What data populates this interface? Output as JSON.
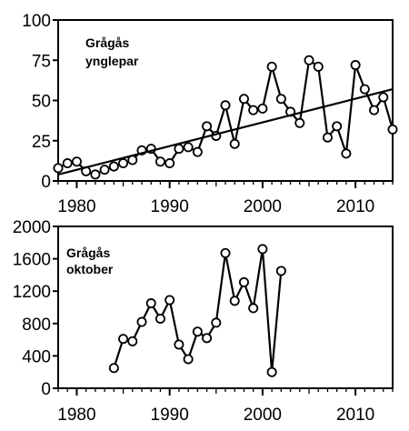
{
  "chart_data": [
    {
      "type": "line",
      "title": "",
      "annotation": [
        "Grågås",
        "ynglepar"
      ],
      "xlabel": "",
      "ylabel": "",
      "xlim": [
        1978,
        2014
      ],
      "ylim": [
        0,
        100
      ],
      "xticks": [
        1980,
        1990,
        2000,
        2010
      ],
      "yticks": [
        0,
        25,
        50,
        75,
        100
      ],
      "grid": false,
      "series": [
        {
          "x": [
            1978,
            1979,
            1980,
            1981,
            1982,
            1983,
            1984,
            1985,
            1986,
            1987,
            1988,
            1989,
            1990,
            1991,
            1992,
            1993,
            1994,
            1995,
            1996,
            1997,
            1998,
            1999,
            2000,
            2001,
            2002,
            2003,
            2004,
            2005,
            2006,
            2007,
            2008,
            2009,
            2010,
            2011,
            2012,
            2013,
            2014
          ],
          "values": [
            8,
            11,
            12,
            6,
            4,
            7,
            9,
            11,
            13,
            19,
            20,
            12,
            11,
            20,
            21,
            18,
            34,
            28,
            47,
            23,
            51,
            44,
            45,
            71,
            51,
            43,
            36,
            75,
            71,
            27,
            34,
            17,
            72,
            57,
            44,
            52,
            32
          ],
          "markers": "open-circle"
        },
        {
          "kind": "trend",
          "x": [
            1978,
            2014
          ],
          "values": [
            4,
            57
          ]
        }
      ]
    },
    {
      "type": "line",
      "title": "",
      "annotation": [
        "Grågås",
        "oktober"
      ],
      "xlabel": "",
      "ylabel": "",
      "xlim": [
        1978,
        2014
      ],
      "ylim": [
        0,
        2000
      ],
      "xticks": [
        1980,
        1990,
        2000,
        2010
      ],
      "yticks": [
        0,
        400,
        800,
        1200,
        1600,
        2000
      ],
      "grid": false,
      "series": [
        {
          "x": [
            1984,
            1985,
            1986,
            1987,
            1988,
            1989,
            1990,
            1991,
            1992,
            1993,
            1994,
            1995,
            1996,
            1997,
            1998,
            1999,
            2000,
            2001,
            2002
          ],
          "values": [
            250,
            610,
            580,
            820,
            1050,
            860,
            1090,
            540,
            360,
            700,
            620,
            810,
            1670,
            1080,
            1310,
            990,
            1720,
            200,
            1450
          ],
          "markers": "open-circle"
        }
      ]
    }
  ]
}
